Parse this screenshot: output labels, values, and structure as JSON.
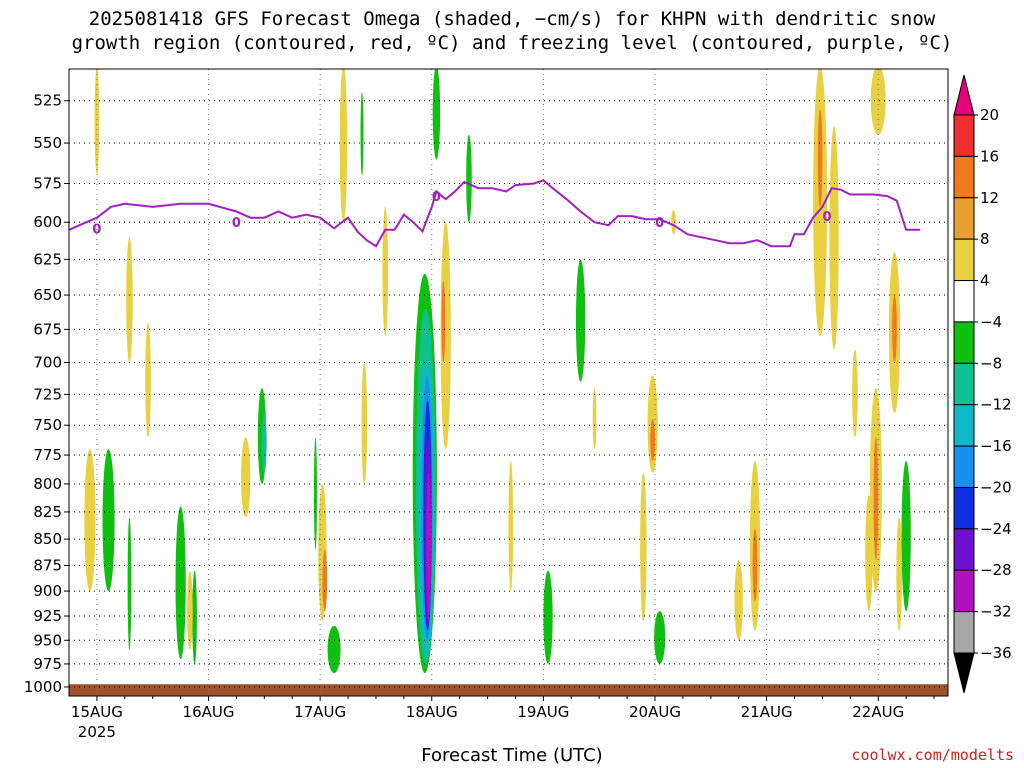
{
  "title_line1": "2025081418 GFS Forecast Omega (shaded, −cm/s) for KHPN with dendritic snow",
  "title_line2": "growth region (contoured, red, ºC) and freezing level (contoured, purple, ºC)",
  "x_axis_title": "Forecast Time (UTC)",
  "credit": "coolwx.com/modelts",
  "chart_data": {
    "type": "heatmap",
    "x_axis": {
      "unit": "hours since 2025-08-15 00Z",
      "range_hours": [
        -6,
        183
      ],
      "tick_labels": [
        "15AUG",
        "16AUG",
        "17AUG",
        "18AUG",
        "19AUG",
        "20AUG",
        "21AUG",
        "22AUG"
      ],
      "tick_hours": [
        0,
        24,
        48,
        72,
        96,
        120,
        144,
        168
      ],
      "year_label": "2025"
    },
    "y_axis": {
      "unit": "hPa",
      "tick_labels": [
        "525",
        "550",
        "575",
        "600",
        "625",
        "650",
        "675",
        "700",
        "725",
        "750",
        "775",
        "800",
        "825",
        "850",
        "875",
        "900",
        "925",
        "950",
        "975",
        "1000"
      ],
      "ticks": [
        525,
        550,
        575,
        600,
        625,
        650,
        675,
        700,
        725,
        750,
        775,
        800,
        825,
        850,
        875,
        900,
        925,
        950,
        975,
        1000
      ],
      "top": 507,
      "bottom": 1010,
      "scale": "log"
    },
    "grid": true,
    "colorbar": {
      "labels": [
        "20",
        "16",
        "12",
        "8",
        "4",
        "−4",
        "−8",
        "−12",
        "−16",
        "−20",
        "−24",
        "−28",
        "−32",
        "−36"
      ],
      "colors": [
        "#e8007a",
        "#f03030",
        "#f07a20",
        "#e8a030",
        "#e8d040",
        "#ffffff",
        "#10c010",
        "#10c090",
        "#10b8c8",
        "#1890f0",
        "#1030e0",
        "#7010d0",
        "#b010c0",
        "#a8a8a8",
        "#000000"
      ]
    },
    "freezing_level": {
      "label": "0",
      "color": "#a020c0",
      "points": [
        [
          -6,
          605
        ],
        [
          -3,
          601
        ],
        [
          0,
          597
        ],
        [
          3,
          590
        ],
        [
          6,
          588
        ],
        [
          12,
          590
        ],
        [
          18,
          588
        ],
        [
          24,
          588
        ],
        [
          30,
          593
        ],
        [
          33,
          597
        ],
        [
          36,
          597
        ],
        [
          39,
          593
        ],
        [
          42,
          597
        ],
        [
          45,
          595
        ],
        [
          48,
          597
        ],
        [
          51,
          604
        ],
        [
          54,
          597
        ],
        [
          56,
          606
        ],
        [
          58,
          612
        ],
        [
          60,
          616
        ],
        [
          62,
          605
        ],
        [
          64,
          605
        ],
        [
          66,
          595
        ],
        [
          68,
          600
        ],
        [
          70,
          606
        ],
        [
          72,
          590
        ],
        [
          73,
          580
        ],
        [
          75,
          585
        ],
        [
          77,
          580
        ],
        [
          79,
          574
        ],
        [
          82,
          578
        ],
        [
          85,
          578
        ],
        [
          88,
          580
        ],
        [
          90,
          576
        ],
        [
          94,
          575
        ],
        [
          96,
          573
        ],
        [
          98,
          578
        ],
        [
          101,
          585
        ],
        [
          104,
          593
        ],
        [
          107,
          600
        ],
        [
          110,
          602
        ],
        [
          112,
          596
        ],
        [
          115,
          596
        ],
        [
          118,
          598
        ],
        [
          121,
          598
        ],
        [
          124,
          602
        ],
        [
          127,
          608
        ],
        [
          130,
          610
        ],
        [
          133,
          612
        ],
        [
          136,
          614
        ],
        [
          139,
          614
        ],
        [
          142,
          612
        ],
        [
          145,
          616
        ],
        [
          149,
          616
        ],
        [
          150,
          608
        ],
        [
          152,
          608
        ],
        [
          154,
          597
        ],
        [
          156,
          590
        ],
        [
          158,
          578
        ],
        [
          160,
          579
        ],
        [
          162,
          582
        ],
        [
          167,
          582
        ],
        [
          170,
          583
        ],
        [
          172,
          586
        ],
        [
          174,
          605
        ],
        [
          177,
          605
        ]
      ]
    },
    "omega_patches": [
      {
        "h": 70.5,
        "p1": 635,
        "p2": 985,
        "hw": 2.6,
        "color": "#10c010"
      },
      {
        "h": 70.7,
        "p1": 660,
        "p2": 975,
        "hw": 2.1,
        "color": "#10c090"
      },
      {
        "h": 70.9,
        "p1": 700,
        "p2": 965,
        "hw": 1.6,
        "color": "#10b8c8"
      },
      {
        "h": 71.0,
        "p1": 710,
        "p2": 950,
        "hw": 1.2,
        "color": "#1890f0"
      },
      {
        "h": 71.1,
        "p1": 730,
        "p2": 940,
        "hw": 0.9,
        "color": "#1030e0"
      },
      {
        "h": 71.2,
        "p1": 760,
        "p2": 935,
        "hw": 0.7,
        "color": "#7010d0"
      },
      {
        "h": 71.3,
        "p1": 790,
        "p2": 930,
        "hw": 0.5,
        "color": "#b010c0"
      },
      {
        "h": 2.5,
        "p1": 770,
        "p2": 900,
        "hw": 1.3,
        "color": "#10c010"
      },
      {
        "h": 7.0,
        "p1": 830,
        "p2": 960,
        "hw": 0.4,
        "color": "#10c010"
      },
      {
        "h": 18.0,
        "p1": 820,
        "p2": 970,
        "hw": 1.1,
        "color": "#10c010"
      },
      {
        "h": 21.0,
        "p1": 880,
        "p2": 975,
        "hw": 0.5,
        "color": "#10c010"
      },
      {
        "h": 35.5,
        "p1": 720,
        "p2": 800,
        "hw": 0.9,
        "color": "#10c010"
      },
      {
        "h": 36.0,
        "p1": 740,
        "p2": 790,
        "hw": 0.5,
        "color": "#10c090"
      },
      {
        "h": 51.0,
        "p1": 935,
        "p2": 985,
        "hw": 1.4,
        "color": "#10c010"
      },
      {
        "h": 47.0,
        "p1": 760,
        "p2": 860,
        "hw": 0.3,
        "color": "#10c010"
      },
      {
        "h": 57.0,
        "p1": 520,
        "p2": 570,
        "hw": 0.3,
        "color": "#10c010"
      },
      {
        "h": 73.0,
        "p1": 505,
        "p2": 560,
        "hw": 0.8,
        "color": "#10c010"
      },
      {
        "h": 80.0,
        "p1": 545,
        "p2": 600,
        "hw": 0.6,
        "color": "#10c010"
      },
      {
        "h": 97.0,
        "p1": 880,
        "p2": 975,
        "hw": 1.0,
        "color": "#10c010"
      },
      {
        "h": 104.0,
        "p1": 625,
        "p2": 715,
        "hw": 1.0,
        "color": "#10c010"
      },
      {
        "h": 121.0,
        "p1": 920,
        "p2": 975,
        "hw": 1.2,
        "color": "#10c010"
      },
      {
        "h": 174.0,
        "p1": 780,
        "p2": 920,
        "hw": 1.0,
        "color": "#10c010"
      },
      {
        "h": -1.5,
        "p1": 770,
        "p2": 900,
        "hw": 1.2,
        "color": "#e8d040"
      },
      {
        "h": 0.0,
        "p1": 505,
        "p2": 570,
        "hw": 0.5,
        "color": "#e8d040"
      },
      {
        "h": 7.0,
        "p1": 610,
        "p2": 700,
        "hw": 0.7,
        "color": "#e8d040"
      },
      {
        "h": 11.0,
        "p1": 670,
        "p2": 760,
        "hw": 0.6,
        "color": "#e8d040"
      },
      {
        "h": 20.0,
        "p1": 880,
        "p2": 960,
        "hw": 0.6,
        "color": "#e8d040"
      },
      {
        "h": 32.0,
        "p1": 760,
        "p2": 830,
        "hw": 1.0,
        "color": "#e8d040"
      },
      {
        "h": 48.5,
        "p1": 800,
        "p2": 930,
        "hw": 0.9,
        "color": "#e8d040"
      },
      {
        "h": 53.0,
        "p1": 505,
        "p2": 600,
        "hw": 0.8,
        "color": "#e8d040"
      },
      {
        "h": 57.5,
        "p1": 700,
        "p2": 800,
        "hw": 0.6,
        "color": "#e8d040"
      },
      {
        "h": 62.0,
        "p1": 590,
        "p2": 680,
        "hw": 0.6,
        "color": "#e8d040"
      },
      {
        "h": 75.0,
        "p1": 600,
        "p2": 770,
        "hw": 1.1,
        "color": "#e8d040"
      },
      {
        "h": 89.0,
        "p1": 780,
        "p2": 900,
        "hw": 0.5,
        "color": "#e8d040"
      },
      {
        "h": 107.0,
        "p1": 720,
        "p2": 770,
        "hw": 0.4,
        "color": "#e8d040"
      },
      {
        "h": 119.5,
        "p1": 710,
        "p2": 790,
        "hw": 1.1,
        "color": "#e8d040"
      },
      {
        "h": 117.5,
        "p1": 790,
        "p2": 930,
        "hw": 0.7,
        "color": "#e8d040"
      },
      {
        "h": 124.0,
        "p1": 592,
        "p2": 608,
        "hw": 0.5,
        "color": "#e8d040"
      },
      {
        "h": 141.5,
        "p1": 780,
        "p2": 940,
        "hw": 1.1,
        "color": "#e8d040"
      },
      {
        "h": 138.0,
        "p1": 870,
        "p2": 950,
        "hw": 0.9,
        "color": "#e8d040"
      },
      {
        "h": 155.5,
        "p1": 505,
        "p2": 680,
        "hw": 1.5,
        "color": "#e8d040"
      },
      {
        "h": 158.5,
        "p1": 540,
        "p2": 690,
        "hw": 1.0,
        "color": "#e8d040"
      },
      {
        "h": 163.0,
        "p1": 690,
        "p2": 760,
        "hw": 0.6,
        "color": "#e8d040"
      },
      {
        "h": 167.5,
        "p1": 720,
        "p2": 900,
        "hw": 1.3,
        "color": "#e8d040"
      },
      {
        "h": 171.5,
        "p1": 620,
        "p2": 740,
        "hw": 1.2,
        "color": "#e8d040"
      },
      {
        "h": 166.0,
        "p1": 810,
        "p2": 920,
        "hw": 0.8,
        "color": "#e8d040"
      },
      {
        "h": 172.5,
        "p1": 830,
        "p2": 940,
        "hw": 0.6,
        "color": "#e8d040"
      },
      {
        "h": 168.0,
        "p1": 505,
        "p2": 545,
        "hw": 1.6,
        "color": "#e8d040"
      },
      {
        "h": 49.0,
        "p1": 860,
        "p2": 920,
        "hw": 0.5,
        "color": "#f07a20"
      },
      {
        "h": 74.5,
        "p1": 640,
        "p2": 700,
        "hw": 0.4,
        "color": "#f07a20"
      },
      {
        "h": 119.5,
        "p1": 745,
        "p2": 780,
        "hw": 0.5,
        "color": "#f07a20"
      },
      {
        "h": 141.5,
        "p1": 840,
        "p2": 910,
        "hw": 0.5,
        "color": "#f07a20"
      },
      {
        "h": 155.5,
        "p1": 530,
        "p2": 590,
        "hw": 0.5,
        "color": "#f07a20"
      },
      {
        "h": 167.5,
        "p1": 760,
        "p2": 870,
        "hw": 0.5,
        "color": "#f07a20"
      },
      {
        "h": 171.5,
        "p1": 650,
        "p2": 700,
        "hw": 0.5,
        "color": "#f07a20"
      }
    ],
    "terrain": {
      "top": 997,
      "color": "#a0522d"
    }
  }
}
